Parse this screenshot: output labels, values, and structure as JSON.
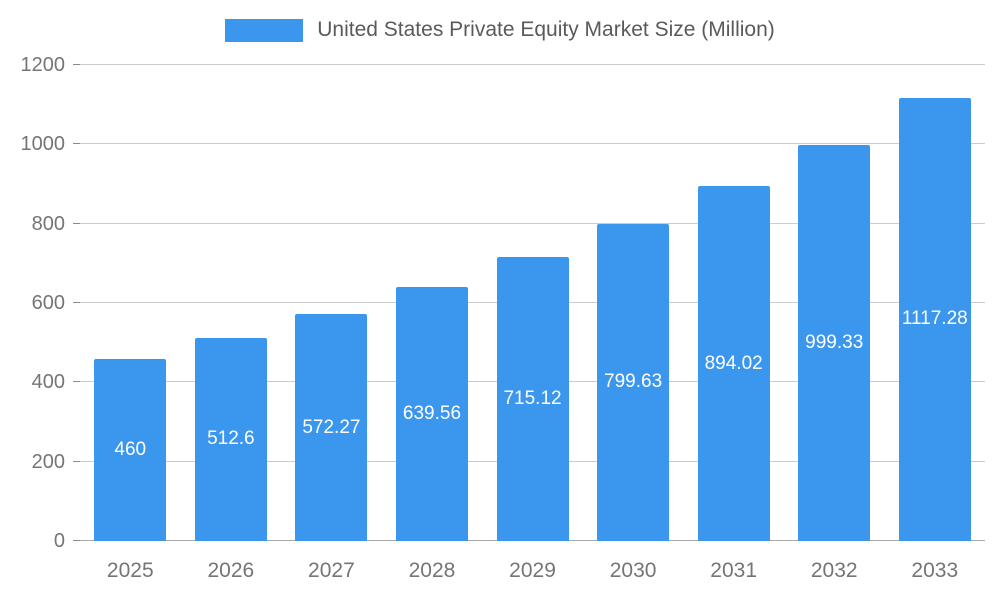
{
  "chart_data": {
    "type": "bar",
    "title": "United States Private Equity Market Size (Million)",
    "categories": [
      "2025",
      "2026",
      "2027",
      "2028",
      "2029",
      "2030",
      "2031",
      "2032",
      "2033"
    ],
    "values": [
      460,
      512.6,
      572.27,
      639.56,
      715.12,
      799.63,
      894.02,
      999.33,
      1117.28
    ],
    "value_labels": [
      "460",
      "512.6",
      "572.27",
      "639.56",
      "715.12",
      "799.63",
      "894.02",
      "999.33",
      "1117.28"
    ],
    "ylim": [
      0,
      1200
    ],
    "yticks": [
      0,
      200,
      400,
      600,
      800,
      1000,
      1200
    ],
    "legend_position": "top",
    "grid": true,
    "colors": {
      "bar": "#3B97EE",
      "value_label": "#ffffff",
      "axis_text": "#757575",
      "gridline": "#cccccc",
      "title_text": "#5a5a5a"
    }
  }
}
